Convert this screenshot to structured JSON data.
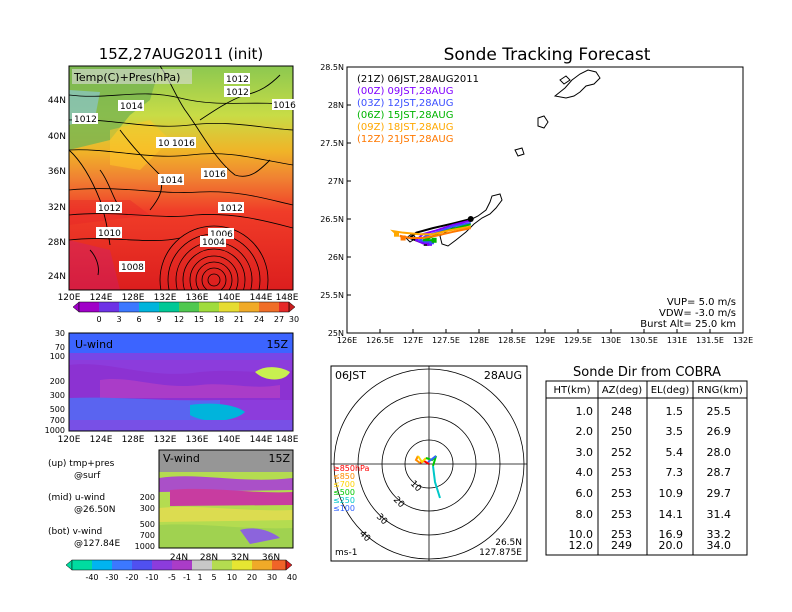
{
  "left": {
    "map_title": "15Z,27AUG2011 (init)",
    "map_label": "Temp(C)+Pres(hPa)",
    "map_lat_ticks": [
      "44N",
      "40N",
      "36N",
      "32N",
      "28N",
      "24N"
    ],
    "lon_ticks": [
      "120E",
      "124E",
      "128E",
      "132E",
      "136E",
      "140E",
      "144E",
      "148E"
    ],
    "pressure_labels": [
      "1012",
      "1012",
      "1014",
      "1016",
      "1012",
      "1016",
      "1016",
      "1014",
      "1016",
      "1012",
      "1012",
      "1010",
      "1006",
      "1004",
      "1008"
    ],
    "temp_colorbar": [
      "0",
      "3",
      "6",
      "9",
      "12",
      "15",
      "18",
      "21",
      "24",
      "27",
      "30"
    ],
    "uwind_label": "U-wind",
    "uwind_time": "15Z",
    "pres_ticks": [
      "30",
      "70",
      "100",
      "200",
      "300",
      "500",
      "700",
      "1000"
    ],
    "vwind_label": "V-wind",
    "vwind_time": "15Z",
    "vwind_pres_ticks": [
      "200",
      "300",
      "500",
      "700",
      "1000"
    ],
    "lat_ticks": [
      "24N",
      "28N",
      "32N",
      "36N"
    ],
    "wind_colorbar": [
      "-40",
      "-30",
      "-20",
      "-10",
      "-5",
      "-1",
      "1",
      "5",
      "10",
      "20",
      "30",
      "40"
    ],
    "legend_lines": [
      "(up) tmp+pres",
      "@surf",
      "(mid) u-wind",
      "@26.50N",
      "(bot) v-wind",
      "@127.84E"
    ]
  },
  "track": {
    "title": "Sonde Tracking Forecast",
    "legend": [
      {
        "text": "(21Z)  06JST,28AUG2011",
        "color": "#000000"
      },
      {
        "text": "(00Z)  09JST,28AUG",
        "color": "#8000ff"
      },
      {
        "text": "(03Z)  12JST,28AUG",
        "color": "#3c50ff"
      },
      {
        "text": "(06Z)  15JST,28AUG",
        "color": "#00b400"
      },
      {
        "text": "(09Z)  18JST,28AUG",
        "color": "#ffa800"
      },
      {
        "text": "(12Z)  21JST,28AUG",
        "color": "#ff7800"
      }
    ],
    "info": [
      "VUP=  5.0 m/s",
      "VDW= -3.0 m/s",
      "Burst Alt= 25.0 km"
    ]
  },
  "polar": {
    "time_label": "06JST",
    "date_label": "28AUG",
    "level_labels": [
      {
        "text": "≥850hPa",
        "color": "#ff0000"
      },
      {
        "text": "≤850",
        "color": "#ff8c00"
      },
      {
        "text": "≤700",
        "color": "#ffd200"
      },
      {
        "text": "≤500",
        "color": "#00c800"
      },
      {
        "text": "≤250",
        "color": "#00c8c8"
      },
      {
        "text": "≤100",
        "color": "#3264ff"
      }
    ],
    "ring_labels": [
      "10",
      "20",
      "30",
      "40"
    ],
    "unit_label": "ms-1",
    "pos_lat": "26.5N",
    "pos_lon": "127.875E"
  },
  "table": {
    "title": "Sonde Dir from COBRA",
    "headers": [
      "HT(km)",
      "AZ(deg)",
      "EL(deg)",
      "RNG(km)"
    ],
    "rows": [
      [
        "1.0",
        "248",
        "1.5",
        "25.5"
      ],
      [
        "2.0",
        "250",
        "3.5",
        "26.9"
      ],
      [
        "3.0",
        "252",
        "5.4",
        "28.0"
      ],
      [
        "4.0",
        "253",
        "7.3",
        "28.7"
      ],
      [
        "6.0",
        "253",
        "10.9",
        "29.7"
      ],
      [
        "8.0",
        "253",
        "14.1",
        "31.4"
      ],
      [
        "10.0",
        "253",
        "16.9",
        "33.2"
      ],
      [
        "12.0",
        "249",
        "20.0",
        "34.0"
      ]
    ]
  },
  "chart_data": {
    "type": "line",
    "title": "Sonde Tracking Forecast",
    "xlabel": "",
    "ylabel": "",
    "xlim": [
      126,
      132
    ],
    "ylim": [
      25,
      28.5
    ],
    "x_ticks": [
      "126E",
      "126.5E",
      "127E",
      "127.5E",
      "128E",
      "128.5E",
      "129E",
      "129.5E",
      "130E",
      "130.5E",
      "131E",
      "131.5E",
      "132E"
    ],
    "y_ticks": [
      "25N",
      "25.5N",
      "26N",
      "26.5N",
      "27N",
      "27.5N",
      "28N",
      "28.5N"
    ],
    "origin": {
      "lon": 127.875,
      "lat": 26.5
    },
    "series": [
      {
        "name": "(21Z)  06JST,28AUG2011",
        "color": "#000000",
        "lon": [
          127.875,
          127.6,
          127.3,
          127.05,
          126.95,
          127.1,
          127.2
        ],
        "lat": [
          26.5,
          26.44,
          26.38,
          26.32,
          26.25,
          26.2,
          26.18
        ]
      },
      {
        "name": "(00Z)  09JST,28AUG",
        "color": "#8000ff",
        "lon": [
          127.875,
          127.6,
          127.35,
          127.15,
          127.05,
          127.15,
          127.25
        ],
        "lat": [
          26.48,
          26.42,
          26.35,
          26.3,
          26.22,
          26.18,
          26.18
        ]
      },
      {
        "name": "(03Z)  12JST,28AUG",
        "color": "#3c50ff",
        "lon": [
          127.875,
          127.6,
          127.35,
          127.2,
          127.1,
          127.18,
          127.28
        ],
        "lat": [
          26.45,
          26.4,
          26.32,
          26.28,
          26.22,
          26.2,
          26.2
        ]
      },
      {
        "name": "(06Z)  15JST,28AUG",
        "color": "#00b400",
        "lon": [
          127.875,
          127.6,
          127.4,
          127.25,
          127.15,
          127.22,
          127.32
        ],
        "lat": [
          26.43,
          26.37,
          26.32,
          26.25,
          26.22,
          26.22,
          26.22
        ]
      },
      {
        "name": "(09Z)  18JST,28AUG",
        "color": "#ffa800",
        "lon": [
          127.875,
          127.55,
          127.3,
          127.1,
          126.85,
          126.7,
          126.75
        ],
        "lat": [
          26.4,
          26.35,
          26.3,
          26.3,
          26.32,
          26.34,
          26.3
        ]
      },
      {
        "name": "(12Z)  21JST,28AUG",
        "color": "#ff7800",
        "lon": [
          127.875,
          127.6,
          127.35,
          127.15,
          126.95,
          126.8,
          126.85
        ],
        "lat": [
          26.38,
          26.33,
          26.28,
          26.25,
          26.25,
          26.28,
          26.25
        ]
      }
    ]
  }
}
